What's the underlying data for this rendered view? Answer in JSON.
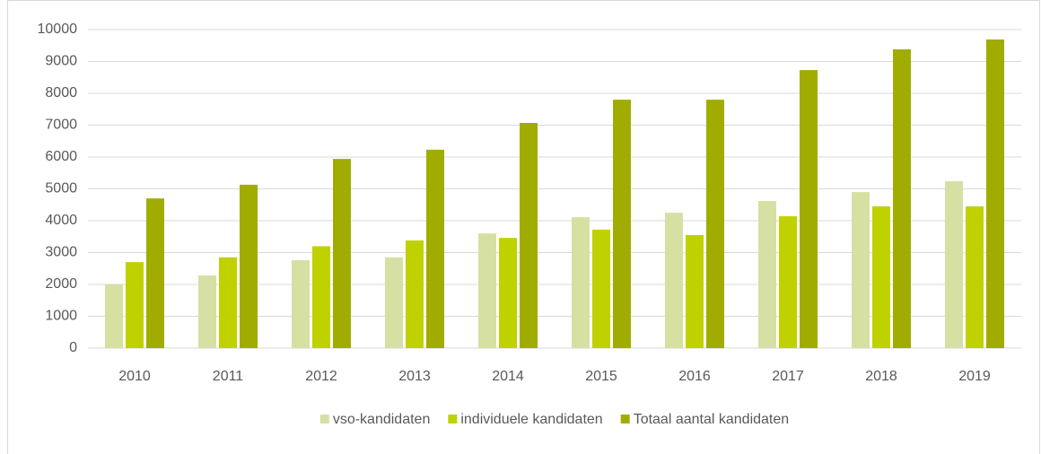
{
  "chart_data": {
    "type": "bar",
    "categories": [
      "2010",
      "2011",
      "2012",
      "2013",
      "2014",
      "2015",
      "2016",
      "2017",
      "2018",
      "2019"
    ],
    "series": [
      {
        "name": "vso-kandidaten",
        "color": "#d6e0a3",
        "values": [
          2000,
          2280,
          2760,
          2850,
          3600,
          4110,
          4250,
          4620,
          4900,
          5240
        ]
      },
      {
        "name": "individuele kandidaten",
        "color": "#bfd200",
        "values": [
          2700,
          2850,
          3200,
          3380,
          3460,
          3720,
          3550,
          4140,
          4450,
          4450
        ]
      },
      {
        "name": "Totaal aantal kandidaten",
        "color": "#a0ad00",
        "values": [
          4700,
          5130,
          5940,
          6230,
          7070,
          7800,
          7800,
          8730,
          9380,
          9690
        ]
      }
    ],
    "ylim": [
      0,
      10000
    ],
    "yticks": [
      0,
      1000,
      2000,
      3000,
      4000,
      5000,
      6000,
      7000,
      8000,
      9000,
      10000
    ],
    "grid": true,
    "legend": "bottom"
  }
}
